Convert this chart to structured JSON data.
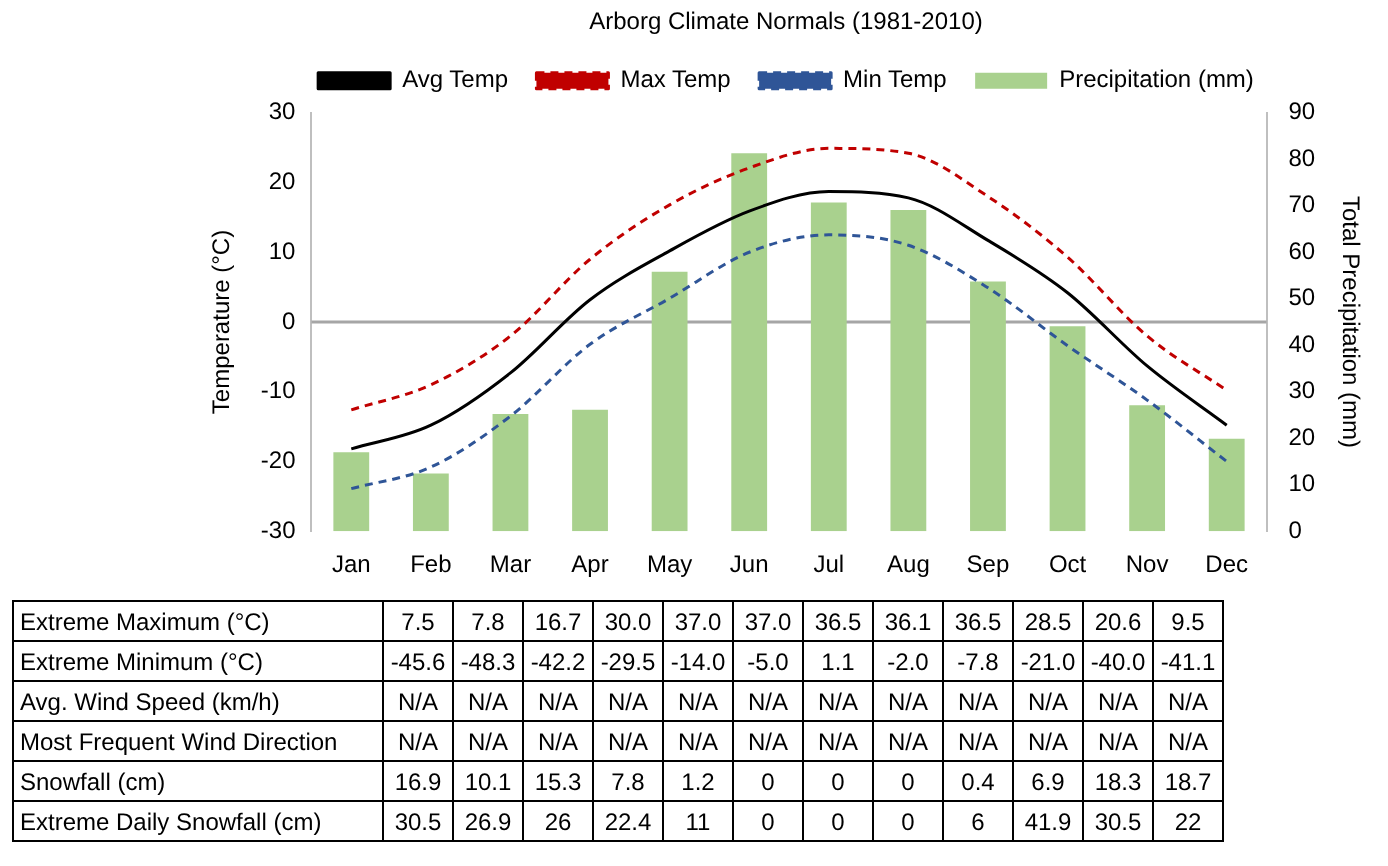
{
  "chart_data": [
    {
      "type": "bar",
      "title": "Arborg Climate Normals (1981-2010)",
      "ylabel": "Temperature (°C)",
      "y2label": "Total Precipitation (mm)",
      "categories": [
        "Jan",
        "Feb",
        "Mar",
        "Apr",
        "May",
        "Jun",
        "Jul",
        "Aug",
        "Sep",
        "Oct",
        "Nov",
        "Dec"
      ],
      "series": [
        {
          "name": "Precipitation (mm)",
          "type": "bar",
          "axis": "y2",
          "color": "#a9d18e",
          "values": [
            17.0,
            12.4,
            25.2,
            26.1,
            55.8,
            81.3,
            70.7,
            69.1,
            53.7,
            44.1,
            27.1,
            19.9
          ]
        },
        {
          "name": "Avg Temp",
          "type": "line",
          "color": "#000000",
          "line_style": "solid",
          "values": [
            -18.2,
            -14.8,
            -7.3,
            3.2,
            10.2,
            15.9,
            18.7,
            17.8,
            11.7,
            4.2,
            -6.3,
            -14.8
          ]
        },
        {
          "name": "Max Temp",
          "type": "line",
          "color": "#c00000",
          "line_style": "dashed",
          "values": [
            -12.6,
            -9.0,
            -2.0,
            9.0,
            16.8,
            22.1,
            24.9,
            24.2,
            18.0,
            9.3,
            -2.0,
            -9.8
          ]
        },
        {
          "name": "Min Temp",
          "type": "line",
          "color": "#2f5597",
          "line_style": "dashed",
          "values": [
            -23.9,
            -20.8,
            -13.5,
            -3.2,
            3.4,
            10.0,
            12.5,
            11.0,
            4.9,
            -3.4,
            -11.2,
            -20.0
          ]
        }
      ],
      "ylim": [
        -30,
        30
      ],
      "yticks": [
        -30,
        -20,
        -10,
        0,
        10,
        20,
        30
      ],
      "y2lim": [
        0,
        90
      ],
      "y2ticks": [
        0,
        10,
        20,
        30,
        40,
        50,
        60,
        70,
        80,
        90
      ],
      "ref_lines": [
        {
          "axis": "y",
          "value": 0,
          "color": "#a6a6a6"
        }
      ],
      "grid": false,
      "legend": "top",
      "marker": "none"
    },
    {
      "type": "other",
      "y_categories": [
        "Extreme Maximum (°C)",
        "Extreme Minimum (°C)",
        "Avg. Wind Speed (km/h)",
        "Most Frequent Wind Direction",
        "Snowfall (cm)",
        "Extreme Daily Snowfall (cm)"
      ],
      "cell_labels": [
        [
          "7.5",
          "7.8",
          "16.7",
          "30.0",
          "37.0",
          "37.0",
          "36.5",
          "36.1",
          "36.5",
          "28.5",
          "20.6",
          "9.5"
        ],
        [
          "-45.6",
          "-48.3",
          "-42.2",
          "-29.5",
          "-14.0",
          "-5.0",
          "1.1",
          "-2.0",
          "-7.8",
          "-21.0",
          "-40.0",
          "-41.1"
        ],
        [
          "N/A",
          "N/A",
          "N/A",
          "N/A",
          "N/A",
          "N/A",
          "N/A",
          "N/A",
          "N/A",
          "N/A",
          "N/A",
          "N/A"
        ],
        [
          "N/A",
          "N/A",
          "N/A",
          "N/A",
          "N/A",
          "N/A",
          "N/A",
          "N/A",
          "N/A",
          "N/A",
          "N/A",
          "N/A"
        ],
        [
          "16.9",
          "10.1",
          "15.3",
          "7.8",
          "1.2",
          "0",
          "0",
          "0",
          "0.4",
          "6.9",
          "18.3",
          "18.7"
        ],
        [
          "30.5",
          "26.9",
          "26",
          "22.4",
          "11",
          "0",
          "0",
          "0",
          "6",
          "41.9",
          "30.5",
          "22"
        ]
      ]
    }
  ]
}
